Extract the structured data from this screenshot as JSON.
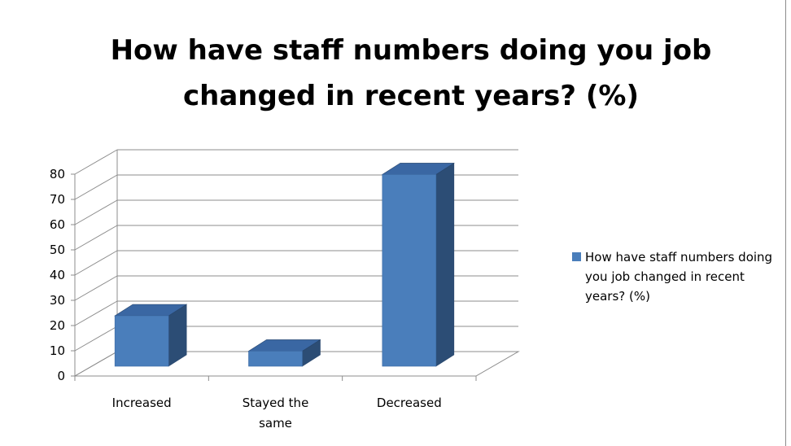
{
  "chart_data": {
    "type": "bar",
    "title": "How have  staff numbers doing you job changed in recent years? (%)",
    "categories": [
      "Increased",
      "Stayed the same",
      "Decreased"
    ],
    "series": [
      {
        "name": "How have  staff numbers doing you job changed in recent years? (%)",
        "values": [
          20,
          6,
          76
        ]
      }
    ],
    "yticks": [
      0,
      10,
      20,
      30,
      40,
      50,
      60,
      70,
      80
    ],
    "ylim": [
      0,
      80
    ],
    "grid": true,
    "three_d": true,
    "legend_position": "right",
    "colors": {
      "bar_front": "#4a7ebb",
      "bar_side": "#2c4d75",
      "bar_top": "#3a67a3"
    }
  }
}
